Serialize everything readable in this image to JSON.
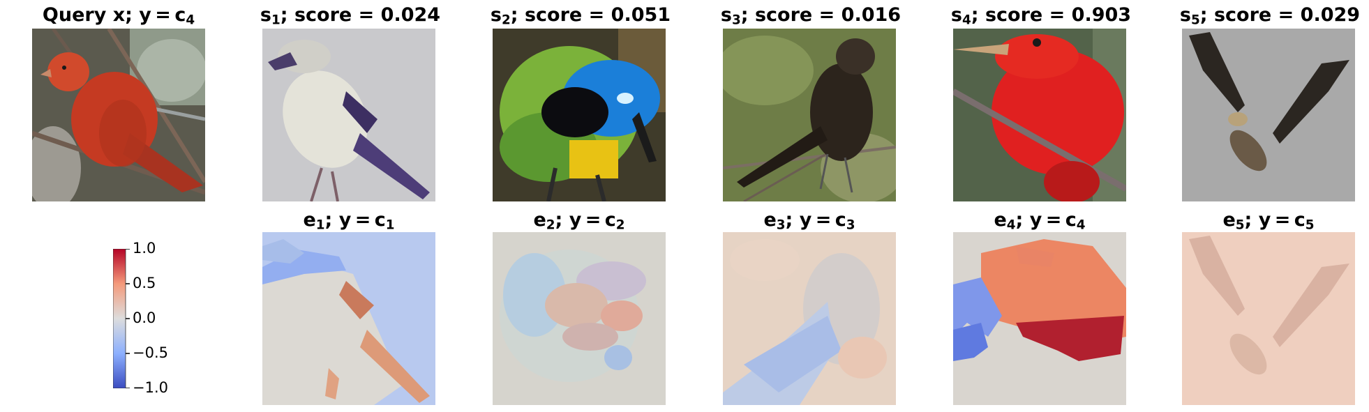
{
  "query": {
    "title": {
      "prefix": "Query x; y = c",
      "sub": "4"
    }
  },
  "samples": [
    {
      "title": {
        "prefix": "s",
        "sub": "1",
        "suffix": "; score = 0.024"
      },
      "score": 0.024,
      "image": "bird-gray-white"
    },
    {
      "title": {
        "prefix": "s",
        "sub": "2",
        "suffix": "; score = 0.051"
      },
      "score": 0.051,
      "image": "bird-green-blue-jay"
    },
    {
      "title": {
        "prefix": "s",
        "sub": "3",
        "suffix": "; score = 0.016"
      },
      "score": 0.016,
      "image": "bird-brown-cowbird"
    },
    {
      "title": {
        "prefix": "s",
        "sub": "4",
        "suffix": "; score = 0.903"
      },
      "score": 0.903,
      "image": "bird-red-tanager"
    },
    {
      "title": {
        "prefix": "s",
        "sub": "5",
        "suffix": "; score = 0.029"
      },
      "score": 0.029,
      "image": "bird-flying-dark"
    }
  ],
  "explanations": [
    {
      "title": {
        "prefix": "e",
        "sub": "1",
        "mid": "; y = c",
        "sub2": "1"
      },
      "image": "heatmap-e1"
    },
    {
      "title": {
        "prefix": "e",
        "sub": "2",
        "mid": "; y = c",
        "sub2": "2"
      },
      "image": "heatmap-e2"
    },
    {
      "title": {
        "prefix": "e",
        "sub": "3",
        "mid": "; y = c",
        "sub2": "3"
      },
      "image": "heatmap-e3"
    },
    {
      "title": {
        "prefix": "e",
        "sub": "4",
        "mid": "; y = c",
        "sub2": "4"
      },
      "image": "heatmap-e4"
    },
    {
      "title": {
        "prefix": "e",
        "sub": "5",
        "mid": "; y = c",
        "sub2": "5"
      },
      "image": "heatmap-e5"
    }
  ],
  "colorbar": {
    "colormap": "coolwarm",
    "min": -1.0,
    "max": 1.0,
    "ticks": [
      "1.0",
      "0.5",
      "0.0",
      "−0.5",
      "−1.0"
    ],
    "colors": {
      "low": "#3b4cc0",
      "mid": "#dddddd",
      "high": "#b40426"
    }
  }
}
